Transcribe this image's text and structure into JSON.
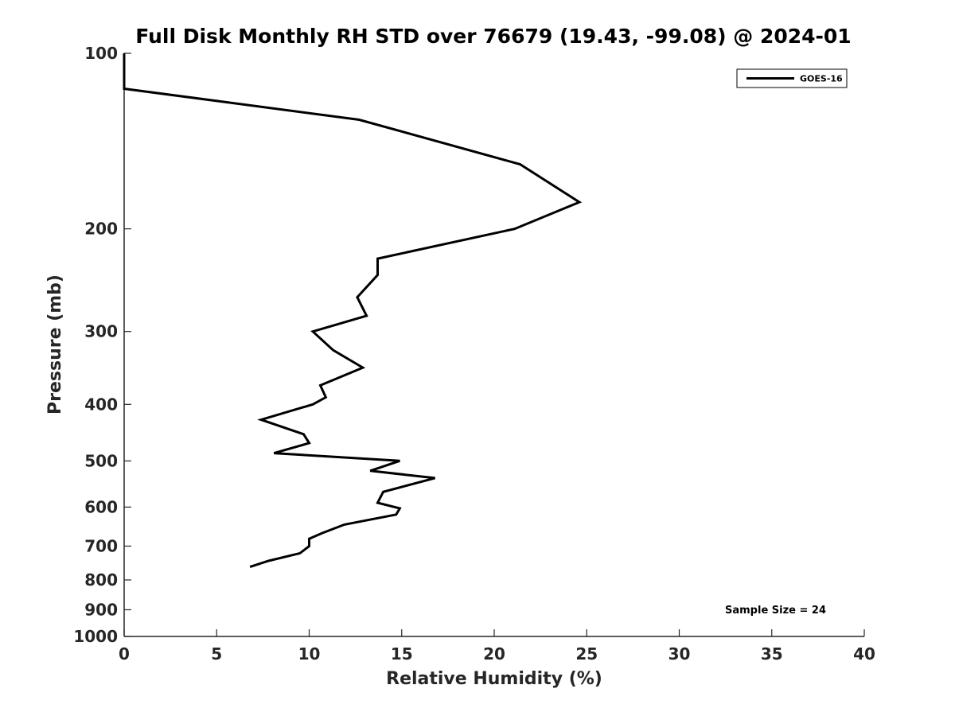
{
  "chart_data": {
    "type": "line",
    "title": "Full Disk Monthly RH STD over 76679 (19.43, -99.08) @ 2024-01",
    "xlabel": "Relative Humidity (%)",
    "ylabel": "Pressure (mb)",
    "xlim": [
      0,
      40
    ],
    "ylim": [
      100,
      1000
    ],
    "y_scale": "log",
    "y_reversed": true,
    "x_ticks": [
      0,
      5,
      10,
      15,
      20,
      25,
      30,
      35,
      40
    ],
    "x_tick_labels": [
      "0",
      "5",
      "10",
      "15",
      "20",
      "25",
      "30",
      "35",
      "40"
    ],
    "y_ticks": [
      100,
      200,
      300,
      400,
      500,
      600,
      700,
      800,
      900,
      1000
    ],
    "y_tick_labels": [
      "100",
      "200",
      "300",
      "400",
      "500",
      "600",
      "700",
      "800",
      "900",
      "1000"
    ],
    "grid": false,
    "legend_position": "top-right",
    "annotation": "Sample Size = 24",
    "line_color": "#000000",
    "series": [
      {
        "name": "GOES-16",
        "x": [
          0,
          0,
          12.7,
          21.4,
          24.6,
          21.1,
          13.7,
          13.7,
          12.6,
          13.1,
          10.2,
          11.3,
          12.9,
          10.6,
          10.9,
          10.2,
          7.4,
          9.7,
          10.0,
          8.1,
          14.9,
          13.3,
          16.8,
          14.0,
          13.7,
          14.9,
          14.7,
          11.9,
          10.7,
          10.0,
          10.0,
          9.5,
          7.8,
          6.8
        ],
        "y": [
          100,
          115,
          130,
          155,
          180,
          200,
          225,
          240,
          262,
          282,
          300,
          323,
          346,
          371,
          389,
          400,
          425,
          450,
          466,
          485,
          500,
          520,
          535,
          565,
          590,
          603,
          618,
          643,
          665,
          680,
          700,
          720,
          742,
          760
        ]
      }
    ]
  }
}
